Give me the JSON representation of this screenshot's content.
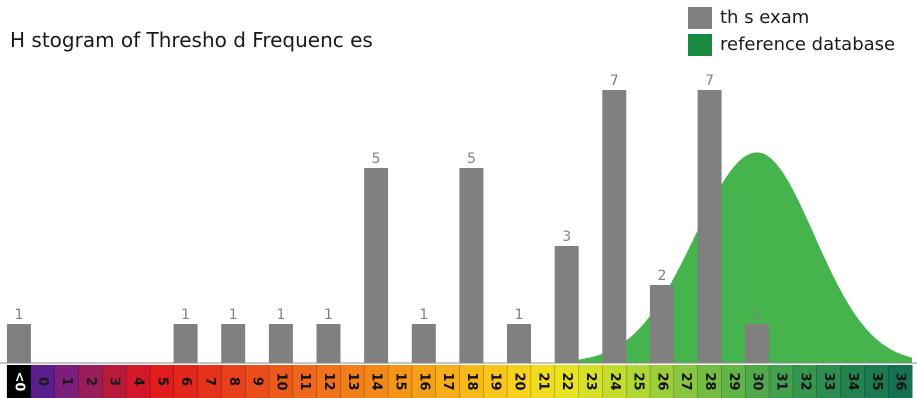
{
  "chart_data": {
    "type": "bar",
    "title": "H stogram of Thresho d Frequenc es",
    "xlabel": "",
    "ylabel": "",
    "categories": [
      "<0",
      "0",
      "1",
      "2",
      "3",
      "4",
      "5",
      "6",
      "7",
      "8",
      "9",
      "10",
      "11",
      "12",
      "13",
      "14",
      "15",
      "16",
      "17",
      "18",
      "19",
      "20",
      "21",
      "22",
      "23",
      "24",
      "25",
      "26",
      "27",
      "28",
      "29",
      "30",
      "31",
      "32",
      "33",
      "34",
      "35",
      "36"
    ],
    "series": [
      {
        "name": "th s exam",
        "color": "#808080",
        "values": [
          1,
          0,
          0,
          0,
          0,
          0,
          0,
          1,
          0,
          1,
          0,
          1,
          0,
          1,
          0,
          5,
          0,
          1,
          0,
          5,
          0,
          1,
          0,
          3,
          0,
          7,
          0,
          2,
          0,
          7,
          0,
          1,
          0,
          0,
          0,
          0,
          0,
          0
        ]
      },
      {
        "name": "reference database",
        "color": "#3cb043",
        "type": "area",
        "distribution": {
          "kind": "normal",
          "mean": 30.0,
          "sd_left": 2.6,
          "sd_right": 2.4,
          "peak": 5.4
        }
      }
    ],
    "ylim": [
      0,
      7.7
    ],
    "grid": false,
    "legend_position": "top-right",
    "category_colors": [
      "#000000",
      "#5a1e8c",
      "#7c1f7c",
      "#9a1d5c",
      "#b81a3c",
      "#d4182a",
      "#e01c1c",
      "#e3261c",
      "#e5321b",
      "#e8401b",
      "#ea4e1b",
      "#ec5a1a",
      "#ee661a",
      "#f0721a",
      "#f27e19",
      "#f38919",
      "#f49519",
      "#f5a118",
      "#f6ad18",
      "#f7b918",
      "#f8c518",
      "#f7d11b",
      "#f2dc1f",
      "#e8e224",
      "#d7e029",
      "#c4dc2e",
      "#b0d634",
      "#9cce3a",
      "#88c63f",
      "#74bd43",
      "#62b447",
      "#50aa4a",
      "#41a14c",
      "#35974e",
      "#2b8d4f",
      "#238350",
      "#1c7a51",
      "#167152"
    ]
  }
}
